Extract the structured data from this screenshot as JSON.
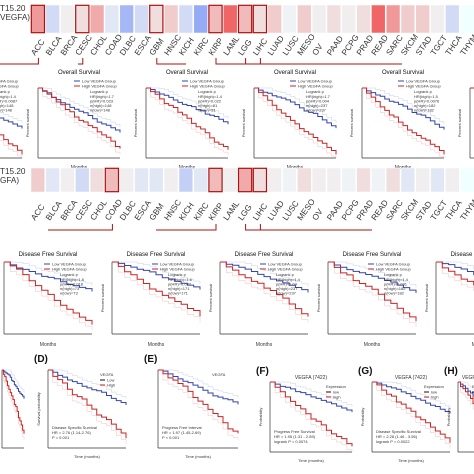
{
  "row_labels": {
    "top": [
      "T15.20",
      "VEGFA)"
    ],
    "mid": [
      "T15.20",
      "GFA)"
    ]
  },
  "cancers": [
    "ACC",
    "BLCA",
    "BRCA",
    "CESC",
    "CHOL",
    "COAD",
    "DLBC",
    "ESCA",
    "GBM",
    "HNSC",
    "KICH",
    "KIRC",
    "KIRP",
    "LAML",
    "LGG",
    "LIHC",
    "LUAD",
    "LUSC",
    "MESO",
    "OV",
    "PAAD",
    "PCPG",
    "PRAD",
    "READ",
    "SARC",
    "SKCM",
    "STAD",
    "TGCT",
    "THCA",
    "THYM"
  ],
  "cancers_mid_top": [
    "ACC",
    "BLCA",
    "BRCA",
    "CESC",
    "CHOL",
    "COAD",
    "DLBC",
    "ESCA",
    "GBM",
    "HNSC",
    "KICH",
    "KIRC",
    "KIRP",
    "LAML",
    "LGG",
    "LIHC",
    "LUAD",
    "LUSC",
    "MESO",
    "OV",
    "PAAD",
    "PCPG",
    "PRAD",
    "READ",
    "SARC",
    "SKCM",
    "STAD",
    "TGCT",
    "THCA",
    "THYM"
  ],
  "colors": {
    "high": "#d62728",
    "low": "#1f3fbf",
    "red": "#cc2222",
    "blue": "#3344aa",
    "outline": "#aa1111"
  },
  "chart_data": [
    {
      "type": "heatmap",
      "title": "",
      "categories": [
        "ACC",
        "BLCA",
        "BRCA",
        "CESC",
        "CHOL",
        "COAD",
        "DLBC",
        "ESCA",
        "GBM",
        "HNSC",
        "KICH",
        "KIRC",
        "KIRP",
        "LAML",
        "LGG",
        "LIHC",
        "LUAD",
        "LUSC",
        "MESO",
        "OV",
        "PAAD",
        "PCPG",
        "PRAD",
        "READ",
        "SARC",
        "SKCM",
        "STAD",
        "TGCT",
        "THCA",
        "THYM"
      ],
      "values": [
        0.6,
        -0.3,
        0.1,
        0.2,
        0.5,
        -0.2,
        -0.6,
        -0.3,
        0.2,
        0.3,
        -0.3,
        -0.7,
        0.4,
        0.9,
        0.4,
        0.2,
        0.3,
        -0.1,
        0.3,
        0.1,
        0.2,
        0.1,
        0.2,
        0.9,
        0.6,
        0.3,
        0.3,
        0.1,
        -0.3,
        0.0
      ],
      "highlighted": [
        "ACC",
        "CESC",
        "GBM",
        "KIRP",
        "LGG",
        "LIHC"
      ]
    },
    {
      "type": "line",
      "title": "Overall Survival",
      "xlabel": "Months",
      "ylabel": "Percent survival",
      "legend": [
        "Low VEGFA Group",
        "High VEGFA Group"
      ]
    },
    {
      "type": "heatmap",
      "title": "",
      "categories": [
        "ACC",
        "BLCA",
        "BRCA",
        "CESC",
        "CHOL",
        "COAD",
        "DLBC",
        "ESCA",
        "GBM",
        "HNSC",
        "KICH",
        "KIRC",
        "KIRP",
        "LAML",
        "LGG",
        "LIHC",
        "LUAD",
        "LUSC",
        "MESO",
        "OV",
        "PAAD",
        "PCPG",
        "PRAD",
        "READ",
        "SARC",
        "SKCM",
        "STAD",
        "TGCT",
        "THCA",
        "THYM"
      ],
      "values": [
        0.3,
        -0.2,
        0.1,
        -0.3,
        0.2,
        0.4,
        0.1,
        -0.2,
        -0.2,
        0.1,
        -0.4,
        -0.2,
        0.4,
        0.1,
        0.5,
        0.2,
        0.1,
        -0.1,
        0.2,
        0.1,
        0.1,
        -0.1,
        0.2,
        -0.1,
        0.2,
        -0.2,
        0.1,
        -0.2,
        0.1,
        0.0
      ],
      "highlighted": [
        "COAD",
        "KIRP",
        "LGG",
        "LIHC"
      ]
    },
    {
      "type": "line",
      "title": "Disease Free Survival",
      "xlabel": "Months",
      "ylabel": "Percent survival",
      "legend": [
        "Low VEGFA Group",
        "High VEGFA Group"
      ]
    },
    {
      "type": "line",
      "panels": [
        {
          "label": "(D)",
          "legend_title": "VEGFA",
          "legend": [
            "Low",
            "High"
          ],
          "caption": "Disease Specific Survival",
          "stat": "HR = 2.76 (1.14-2.76)",
          "p": "P = 0.001",
          "xlabel": "Time (months)",
          "ylabel": "Survival probability"
        },
        {
          "label": "(E)",
          "legend_title": "VEGFA",
          "caption": "Progress Free Interval",
          "stat": "HR = 1.97 (1.45-2.69)",
          "p": "P < 0.001",
          "xlabel": "Time (months)"
        },
        {
          "label": "(F)",
          "title": "VEGFA (7422)",
          "stat": "HR = 1.95 (1.31 - 2.89)",
          "p": "logrank P = 0.0074",
          "caption": "Progress Free Survival",
          "ylabel": "Probability",
          "xlabel": "Time (months)",
          "legend_title": "Expression",
          "legend": [
            "low",
            "high"
          ]
        },
        {
          "label": "(G)",
          "title": "VEGFA (7422)",
          "stat": "HR = 2.28 (1.46 - 3.56)",
          "p": "logrank P = 0.0022",
          "caption": "Disease Specific Survival",
          "ylabel": "Probability",
          "xlabel": "Time (months)",
          "legend_title": "Expression",
          "legend": [
            "low",
            "high"
          ]
        },
        {
          "label": "(H)",
          "title": "VEGFA (7422)",
          "ylabel": "Probability",
          "legend_title": "Expression",
          "legend": [
            "low",
            "high"
          ]
        }
      ]
    }
  ],
  "survival_panels_top": [
    {
      "title": "",
      "stats": [
        "HR(high)=1.4",
        "p(HR)=0.0087",
        "n(high)=148",
        "n(low)=148"
      ]
    },
    {
      "title": "Overall Survival",
      "stats": [
        "HR(high)=1.7",
        "p(HR)=0.023",
        "n(high)=148",
        "n(low)=148"
      ]
    },
    {
      "title": "Overall Survival",
      "stats": [
        "HR(high)=1.4",
        "p(HR)=0.022",
        "n(high)=81",
        "n(low)=81"
      ]
    },
    {
      "title": "Overall Survival",
      "stats": [
        "HR(high)=1.7",
        "p(HR)=0.004",
        "n(high)=237",
        "n(low)=237"
      ]
    },
    {
      "title": "Overall Survival",
      "stats": [
        "HR(high)=1.5",
        "p(HR)=0.0076",
        "n(high)=182",
        "n(low)=182"
      ]
    },
    {
      "title": "",
      "stats": []
    }
  ],
  "survival_panels_mid": [
    {
      "title": "Disease Free Survival",
      "stats": [
        "HR(high)=1.8",
        "p(HR)=0.018",
        "n(high)=73",
        "n(low)=73"
      ]
    },
    {
      "title": "Disease Free Survival",
      "stats": [
        "HR(high)=1.6",
        "p(HR)=0.027",
        "n(high)=171",
        "n(low)=171"
      ]
    },
    {
      "title": "Disease Free Survival",
      "stats": [
        "HR(high)=1.4",
        "p(HR)=0.04",
        "n(high)=237",
        "n(low)=237"
      ]
    },
    {
      "title": "Disease Free Survival",
      "stats": [
        "HR(high)=1.4",
        "p(HR)=0.031",
        "n(high)=182",
        "n(low)=182"
      ]
    }
  ],
  "legend": {
    "low": "Low VEGFA Group",
    "high": "High VEGFA Group",
    "logrank": "Logrank p"
  },
  "axis": {
    "months": "Months",
    "percent": "Percent survival",
    "ticks_x": [
      "0",
      "50",
      "100",
      "150",
      "200"
    ],
    "ticks_y": [
      "0.0",
      "0.2",
      "0.4",
      "0.6",
      "0.8",
      "1.0"
    ],
    "ticks_x_small": [
      "0",
      "50",
      "100"
    ]
  }
}
